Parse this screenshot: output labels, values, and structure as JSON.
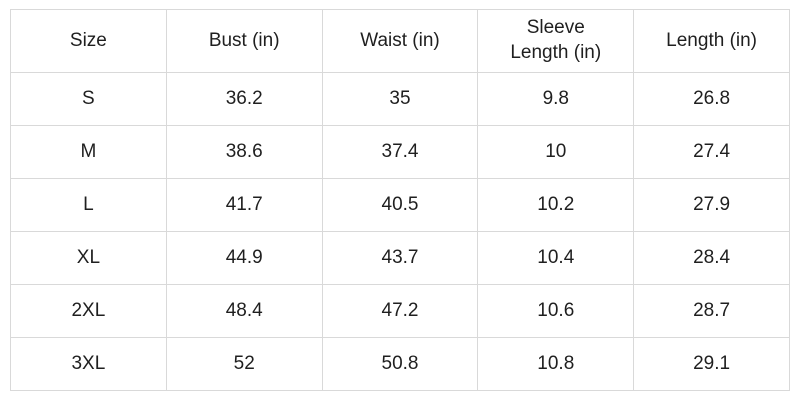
{
  "table": {
    "headers": [
      "Size",
      "Bust (in)",
      "Waist (in)",
      "Sleeve Length (in)",
      "Length (in)"
    ],
    "rows": [
      [
        "S",
        36.2,
        35,
        9.8,
        26.8
      ],
      [
        "M",
        38.6,
        37.4,
        10,
        27.4
      ],
      [
        "L",
        41.7,
        40.5,
        10.2,
        27.9
      ],
      [
        "XL",
        44.9,
        43.7,
        10.4,
        28.4
      ],
      [
        "2XL",
        48.4,
        47.2,
        10.6,
        28.7
      ],
      [
        "3XL",
        52,
        50.8,
        10.8,
        29.1
      ]
    ]
  }
}
